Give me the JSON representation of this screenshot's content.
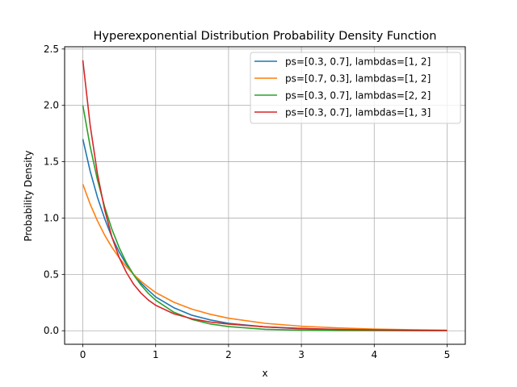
{
  "chart_data": {
    "type": "line",
    "title": "Hyperexponential Distribution Probability Density Function",
    "xlabel": "x",
    "ylabel": "Probability Density",
    "xlim": [
      -0.25,
      5.25
    ],
    "ylim": [
      -0.12,
      2.52
    ],
    "x_ticks": [
      0,
      1,
      2,
      3,
      4,
      5
    ],
    "x_tick_labels": [
      "0",
      "1",
      "2",
      "3",
      "4",
      "5"
    ],
    "y_ticks": [
      0.0,
      0.5,
      1.0,
      1.5,
      2.0,
      2.5
    ],
    "y_tick_labels": [
      "0.0",
      "0.5",
      "1.0",
      "1.5",
      "2.0",
      "2.5"
    ],
    "grid": true,
    "legend_position": "top-right",
    "x": [
      0,
      0.1,
      0.2,
      0.3,
      0.4,
      0.5,
      0.6,
      0.7,
      0.8,
      0.9,
      1.0,
      1.25,
      1.5,
      1.75,
      2.0,
      2.5,
      3.0,
      3.5,
      4.0,
      4.5,
      5.0
    ],
    "series": [
      {
        "name": "ps=[0.3, 0.7], lambdas=[1, 2]",
        "color": "#1f77b4",
        "values": [
          1.7,
          1.418,
          1.186,
          0.994,
          0.829,
          0.697,
          0.587,
          0.497,
          0.421,
          0.359,
          0.3,
          0.204,
          0.137,
          0.096,
          0.066,
          0.034,
          0.017,
          0.01,
          0.006,
          0.004,
          0.002
        ]
      },
      {
        "name": "ps=[0.7, 0.3], lambdas=[1, 2]",
        "color": "#ff7f0e",
        "values": [
          1.3,
          1.125,
          0.976,
          0.848,
          0.74,
          0.646,
          0.566,
          0.497,
          0.438,
          0.387,
          0.339,
          0.253,
          0.191,
          0.146,
          0.111,
          0.066,
          0.04,
          0.025,
          0.015,
          0.009,
          0.005
        ]
      },
      {
        "name": "ps=[0.3, 0.7], lambdas=[2, 2]",
        "color": "#2ca02c",
        "values": [
          2.0,
          1.637,
          1.341,
          1.098,
          0.899,
          0.736,
          0.602,
          0.493,
          0.404,
          0.331,
          0.271,
          0.164,
          0.1,
          0.06,
          0.037,
          0.013,
          0.005,
          0.002,
          0.001,
          0.0,
          0.0
        ]
      },
      {
        "name": "ps=[0.3, 0.7], lambdas=[1, 3]",
        "color": "#d62728",
        "values": [
          2.4,
          1.827,
          1.395,
          1.072,
          0.83,
          0.648,
          0.515,
          0.41,
          0.333,
          0.272,
          0.226,
          0.15,
          0.106,
          0.077,
          0.059,
          0.034,
          0.021,
          0.012,
          0.008,
          0.004,
          0.002
        ]
      }
    ]
  }
}
